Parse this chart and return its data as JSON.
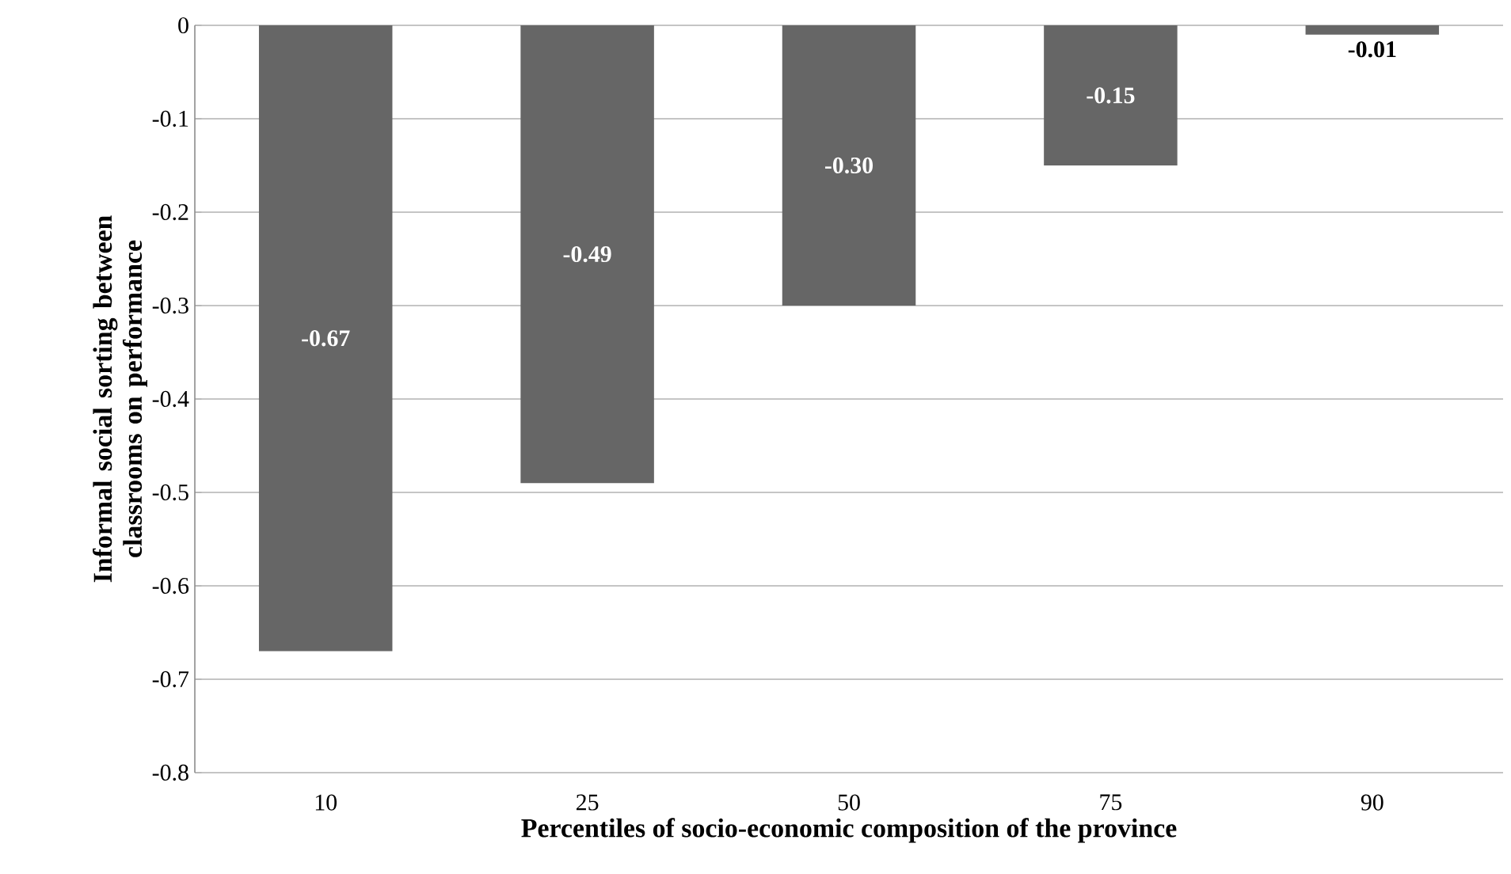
{
  "chart_data": {
    "type": "bar",
    "xlabel": "Percentiles of socio-economic composition of the province",
    "ylabel": "Informal social sorting between classrooms on performance",
    "categories": [
      "10",
      "25",
      "50",
      "75",
      "90"
    ],
    "values": [
      -0.67,
      -0.49,
      -0.3,
      -0.15,
      -0.01
    ],
    "value_labels": [
      "-0.67",
      "-0.49",
      "-0.30",
      "-0.15",
      "-0.01"
    ],
    "color": "#666666",
    "ylim": [
      -0.8,
      0
    ],
    "yticks": [
      -0.8,
      -0.7,
      -0.6,
      -0.5,
      -0.4,
      -0.3,
      -0.2,
      -0.1,
      0
    ],
    "grid": "y"
  }
}
